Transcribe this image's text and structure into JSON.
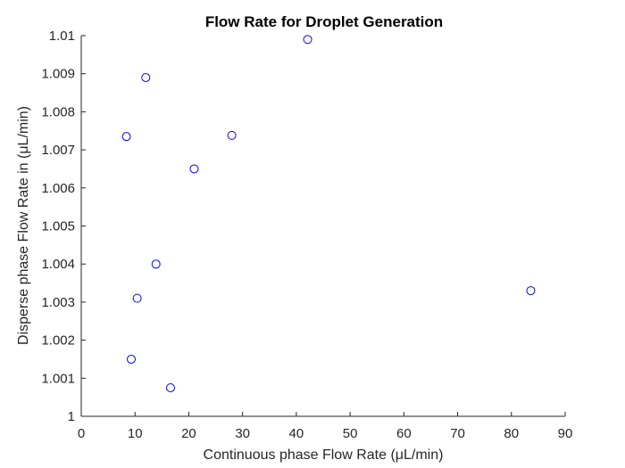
{
  "chart_data": {
    "type": "scatter",
    "title": "Flow Rate for Droplet Generation",
    "xlabel": "Continuous phase Flow Rate (μL/min)",
    "ylabel": "Disperse phase Flow Rate in (μL/min)",
    "xlim": [
      0,
      90
    ],
    "ylim": [
      1.0,
      1.01
    ],
    "x_ticks": [
      "0",
      "10",
      "20",
      "30",
      "40",
      "50",
      "60",
      "70",
      "80",
      "90"
    ],
    "y_ticks": [
      "1",
      "1.001",
      "1.002",
      "1.003",
      "1.004",
      "1.005",
      "1.006",
      "1.007",
      "1.008",
      "1.009",
      "1.01"
    ],
    "grid": false,
    "marker": "open-circle",
    "colors": {
      "marker": "#0000ff",
      "axes": "#262626"
    },
    "series": [
      {
        "x": [
          8.4,
          9.3,
          10.4,
          12.0,
          13.9,
          16.6,
          21.0,
          28.0,
          42.1,
          83.6
        ],
        "y": [
          1.00735,
          1.0015,
          1.0031,
          1.0089,
          1.004,
          1.00075,
          1.0065,
          1.00738,
          1.0099,
          1.0033
        ]
      }
    ]
  }
}
